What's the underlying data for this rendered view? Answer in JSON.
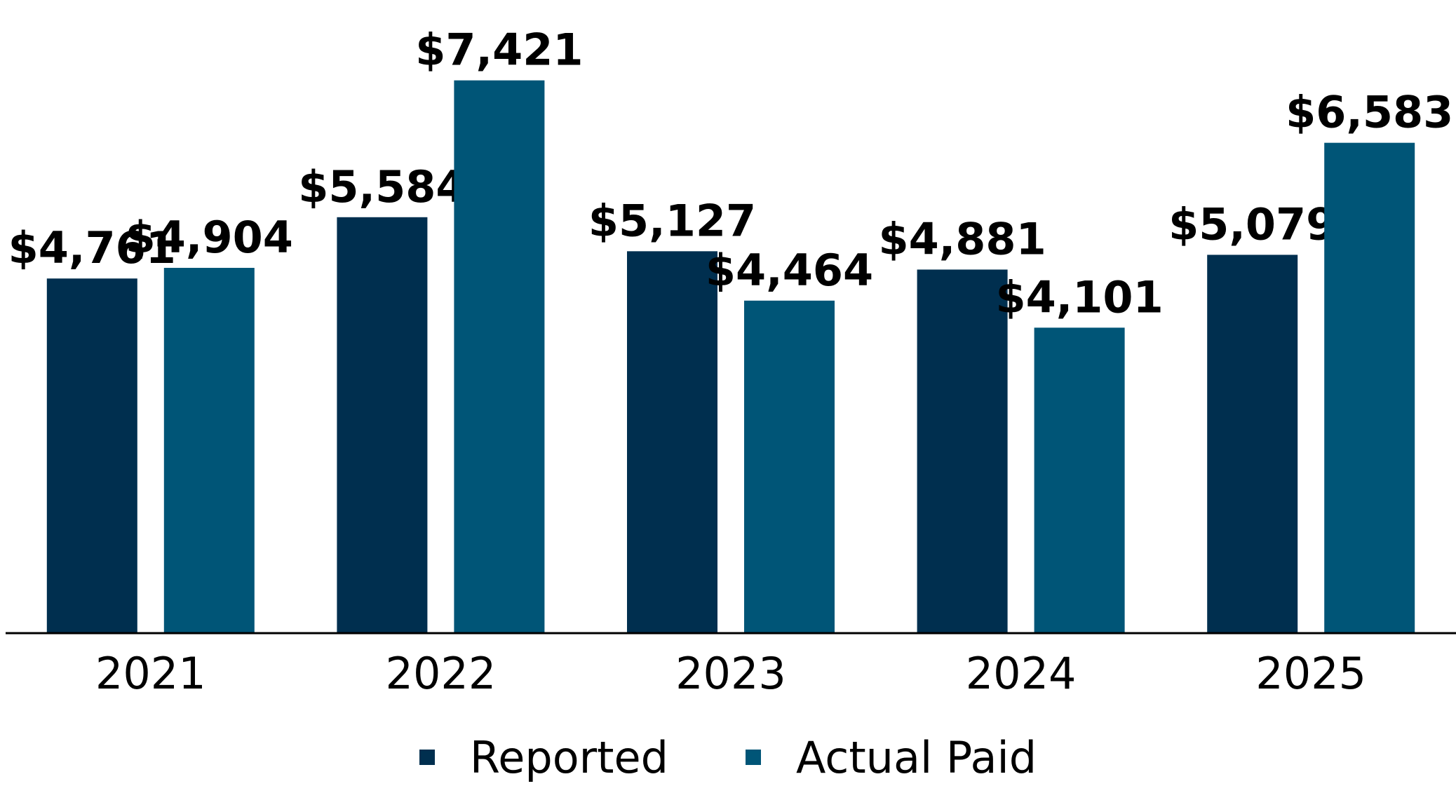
{
  "chart_data": {
    "type": "bar",
    "title": "",
    "xlabel": "",
    "ylabel": "",
    "categories": [
      "2021",
      "2022",
      "2023",
      "2024",
      "2025"
    ],
    "series": [
      {
        "name": "Reported",
        "color": "#002f4f",
        "values": [
          4761,
          5584,
          5127,
          4881,
          5079
        ],
        "labels": [
          "$4,761",
          "$5,584",
          "$5,127",
          "$4,881",
          "$5,079"
        ]
      },
      {
        "name": "Actual Paid",
        "color": "#005577",
        "values": [
          4904,
          7421,
          4464,
          4101,
          6583
        ],
        "labels": [
          "$4,904",
          "$7,421",
          "$4,464",
          "$4,101",
          "$6,583"
        ]
      }
    ],
    "ylim": [
      0,
      8500
    ],
    "grid": false,
    "legend_position": "bottom"
  },
  "legend": {
    "items": [
      {
        "label": "Reported",
        "color": "#002f4f"
      },
      {
        "label": "Actual Paid",
        "color": "#005577"
      }
    ]
  }
}
